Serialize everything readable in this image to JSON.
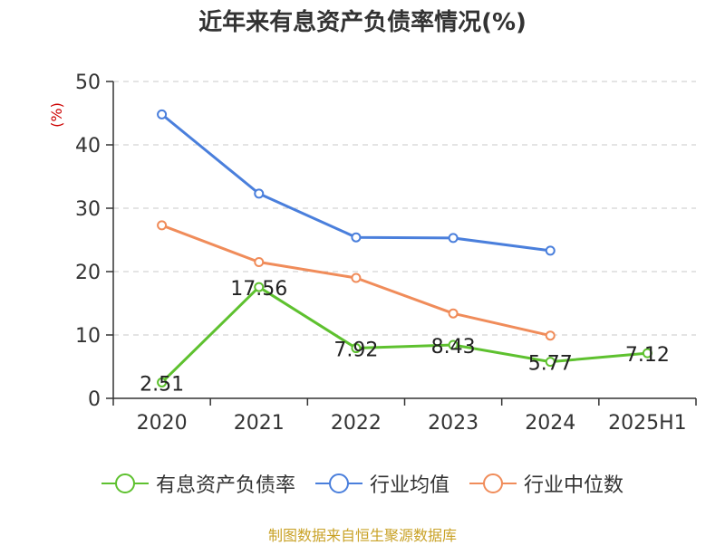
{
  "chart_data": {
    "type": "line",
    "title": "近年来有息资产负债率情况(%)",
    "ylabel": "(%)",
    "xlabel": "",
    "categories": [
      "2020",
      "2021",
      "2022",
      "2023",
      "2024",
      "2025H1"
    ],
    "ylim": [
      0,
      50
    ],
    "yticks": [
      0,
      10,
      20,
      30,
      40,
      50
    ],
    "grid": true,
    "legend_position": "bottom",
    "series": [
      {
        "name": "有息资产负债率",
        "color": "#5ec12f",
        "values": [
          2.51,
          17.56,
          7.92,
          8.43,
          5.77,
          7.12
        ],
        "labels": [
          "2.51",
          "17.56",
          "7.92",
          "8.43",
          "5.77",
          "7.12"
        ]
      },
      {
        "name": "行业均值",
        "color": "#4a7fdc",
        "values": [
          44.8,
          32.3,
          25.4,
          25.3,
          23.3,
          null
        ]
      },
      {
        "name": "行业中位数",
        "color": "#f08c5a",
        "values": [
          27.3,
          21.5,
          19.0,
          13.4,
          9.9,
          null
        ]
      }
    ]
  },
  "source": "制图数据来自恒生聚源数据库"
}
